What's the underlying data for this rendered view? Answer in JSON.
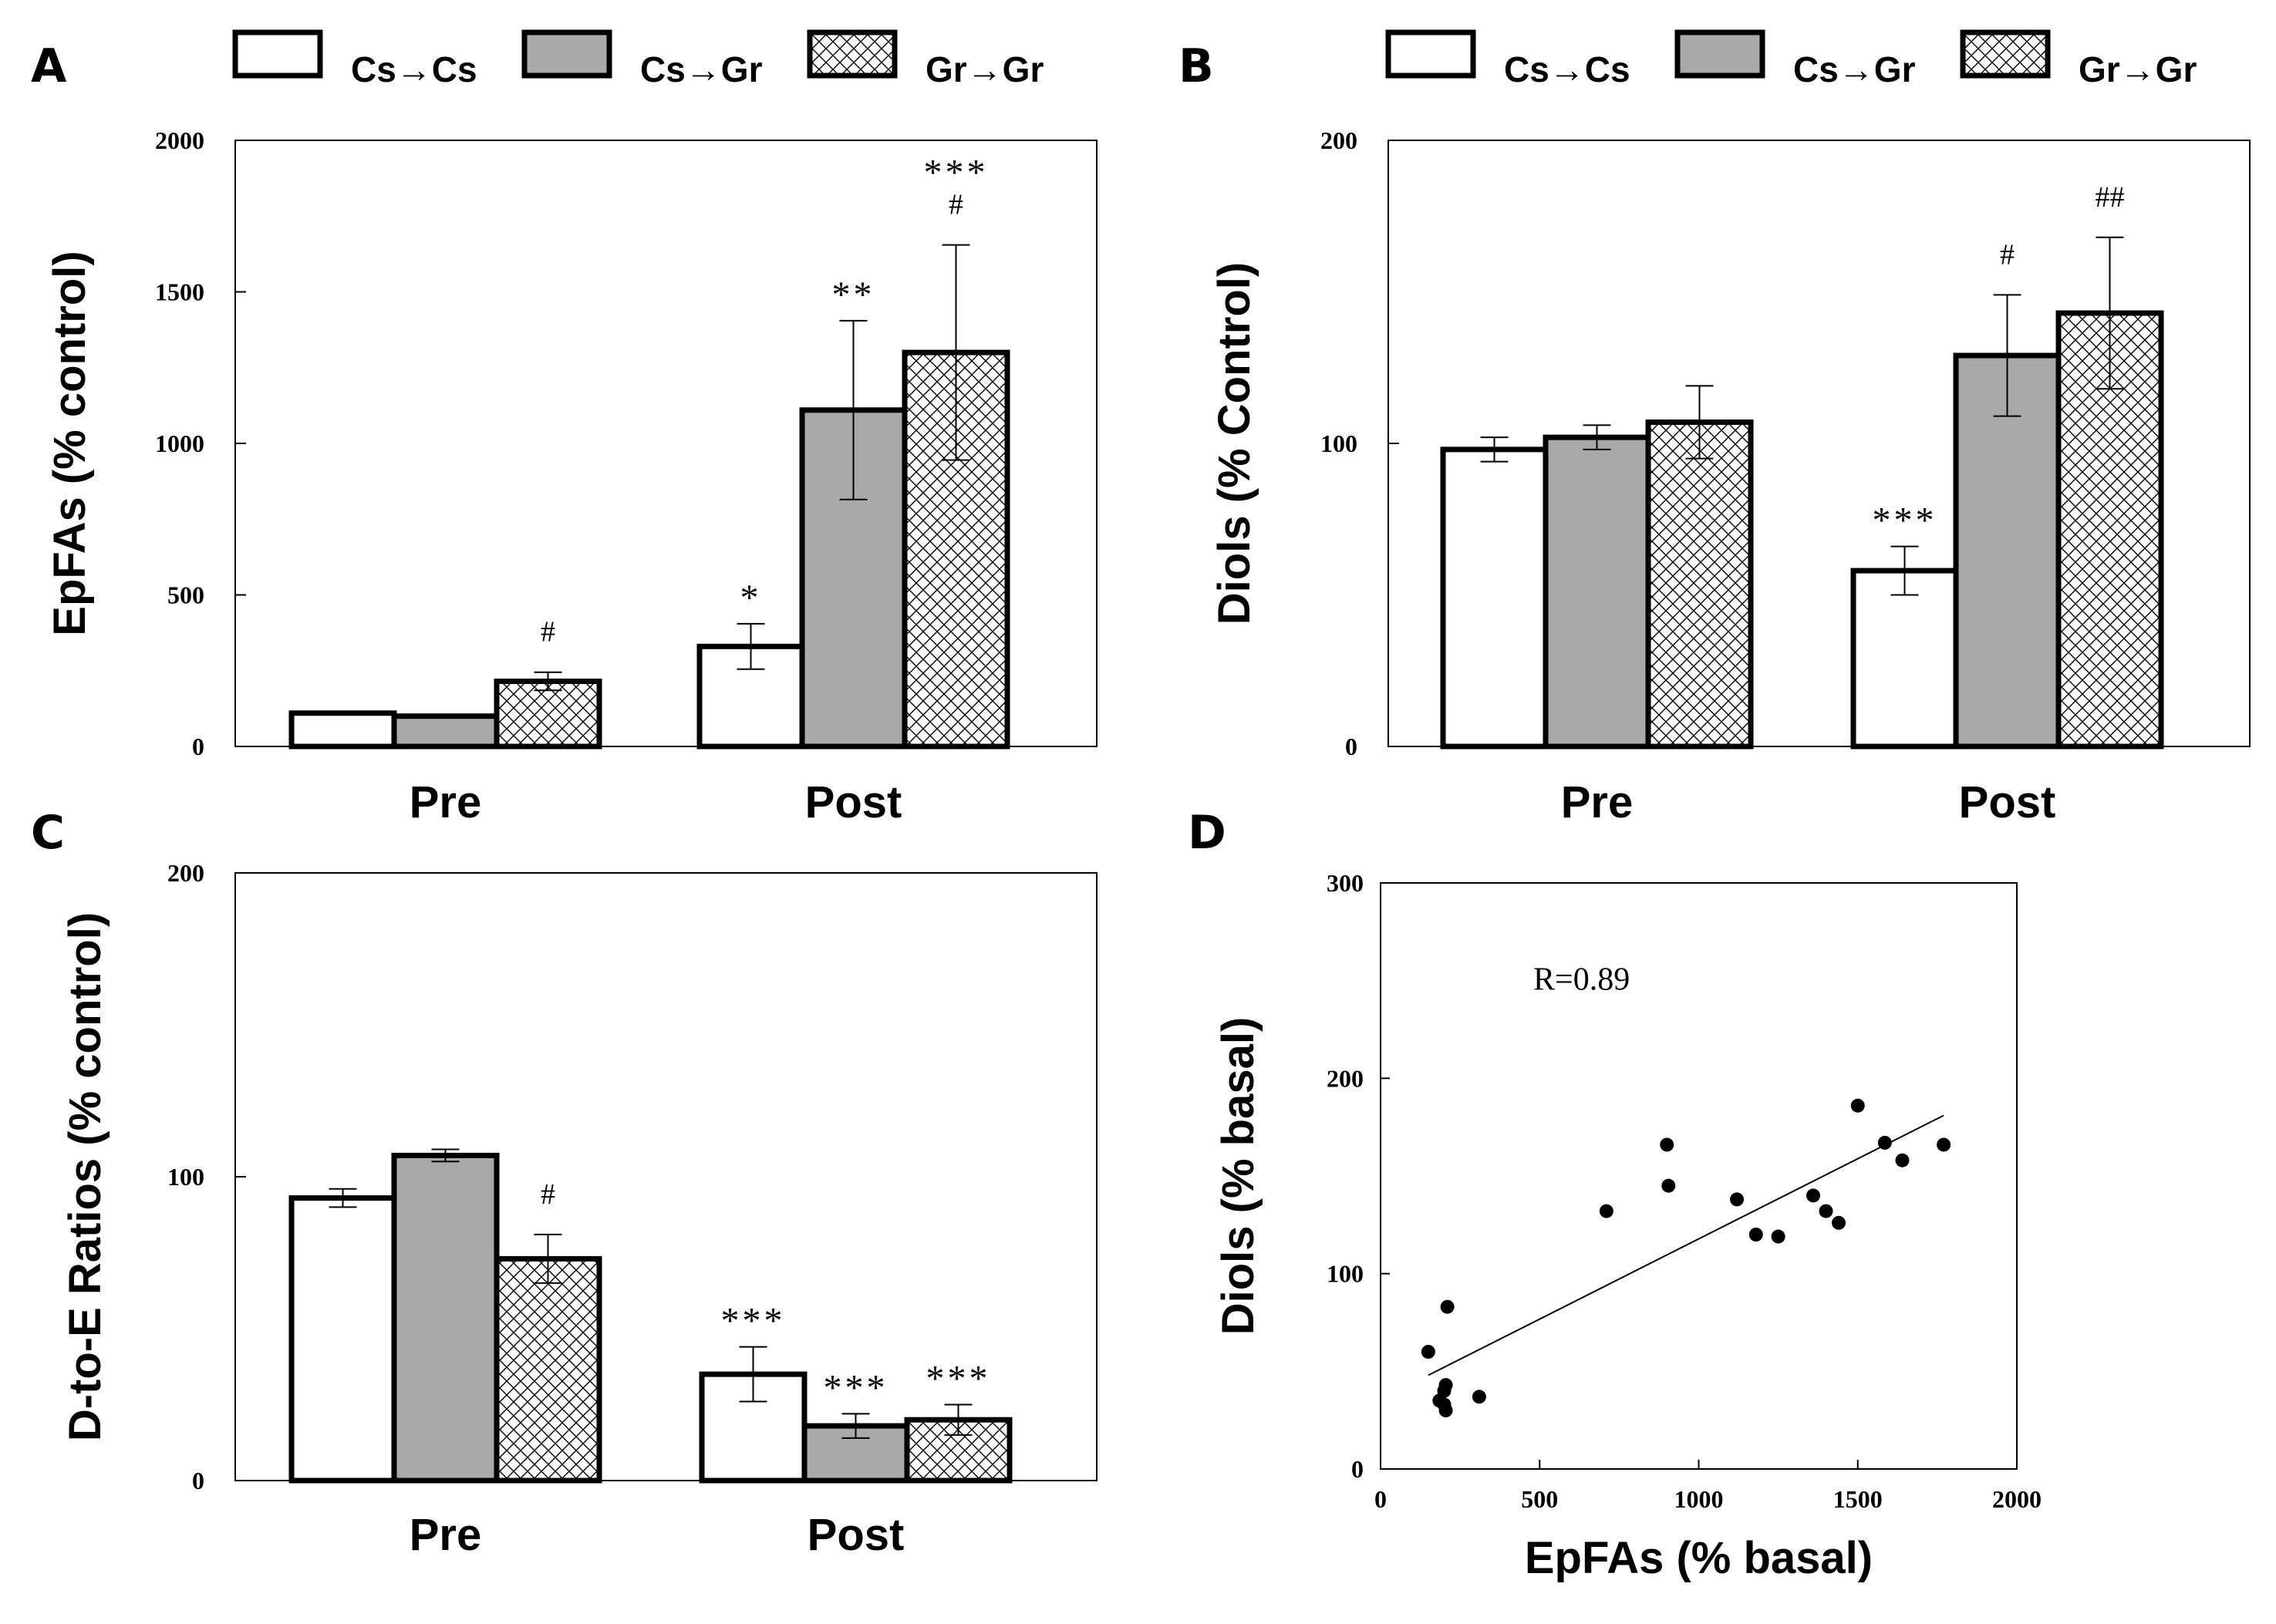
{
  "legend": {
    "items": [
      {
        "label": "Cs→Cs",
        "fill": "white"
      },
      {
        "label": "Cs→Gr",
        "fill": "#a9a9a9"
      },
      {
        "label": "Gr→Gr",
        "fill": "hatch"
      }
    ]
  },
  "colors": {
    "bar_gray": "#a9a9a9",
    "bar_white": "#ffffff",
    "line": "#000000"
  },
  "chart_data": [
    {
      "panel": "A",
      "type": "bar",
      "categories": [
        "Pre",
        "Post"
      ],
      "ylabel": "EpFAs (% control)",
      "ylim": [
        0,
        2000
      ],
      "yticks": [
        0,
        500,
        1000,
        1500,
        2000
      ],
      "series": [
        {
          "name": "Cs→Cs",
          "values": [
            110,
            330
          ],
          "errors": [
            0,
            75
          ],
          "annotations": [
            [
              "",
              ""
            ],
            [
              "*",
              ""
            ]
          ]
        },
        {
          "name": "Cs→Gr",
          "values": [
            100,
            1110
          ],
          "errors": [
            0,
            295
          ],
          "annotations": [
            [
              "",
              ""
            ],
            [
              "**",
              ""
            ]
          ]
        },
        {
          "name": "Gr→Gr",
          "values": [
            215,
            1300
          ],
          "errors": [
            30,
            355
          ],
          "annotations": [
            [
              "",
              "#"
            ],
            [
              "***",
              "#"
            ]
          ]
        }
      ]
    },
    {
      "panel": "B",
      "type": "bar",
      "categories": [
        "Pre",
        "Post"
      ],
      "ylabel": "Diols (% Control)",
      "ylim": [
        0,
        200
      ],
      "yticks": [
        0,
        100,
        200
      ],
      "series": [
        {
          "name": "Cs→Cs",
          "values": [
            98,
            58
          ],
          "errors": [
            4,
            8
          ],
          "annotations": [
            [
              "",
              ""
            ],
            [
              "***",
              ""
            ]
          ]
        },
        {
          "name": "Cs→Gr",
          "values": [
            102,
            129
          ],
          "errors": [
            4,
            20
          ],
          "annotations": [
            [
              "",
              ""
            ],
            [
              "",
              "#"
            ]
          ]
        },
        {
          "name": "Gr→Gr",
          "values": [
            107,
            143
          ],
          "errors": [
            12,
            25
          ],
          "annotations": [
            [
              "",
              ""
            ],
            [
              "",
              "##"
            ]
          ]
        }
      ]
    },
    {
      "panel": "C",
      "type": "bar",
      "categories": [
        "Pre",
        "Post"
      ],
      "ylabel": "D-to-E Ratios (% control)",
      "ylim": [
        0,
        200
      ],
      "yticks": [
        0,
        100,
        200
      ],
      "series": [
        {
          "name": "Cs→Cs",
          "values": [
            93,
            35
          ],
          "errors": [
            3,
            9
          ],
          "annotations": [
            [
              "",
              ""
            ],
            [
              "***",
              ""
            ]
          ]
        },
        {
          "name": "Cs→Gr",
          "values": [
            107,
            18
          ],
          "errors": [
            2,
            4
          ],
          "annotations": [
            [
              "",
              ""
            ],
            [
              "***",
              ""
            ]
          ]
        },
        {
          "name": "Gr→Gr",
          "values": [
            73,
            20
          ],
          "errors": [
            8,
            5
          ],
          "annotations": [
            [
              "",
              "#"
            ],
            [
              "***",
              ""
            ]
          ]
        }
      ]
    },
    {
      "panel": "D",
      "type": "scatter",
      "xlabel": "EpFAs (% basal)",
      "ylabel": "Diols (% basal)",
      "xlim": [
        0,
        2000
      ],
      "ylim": [
        0,
        300
      ],
      "xticks": [
        0,
        500,
        1000,
        1500,
        2000
      ],
      "yticks": [
        0,
        100,
        200,
        300
      ],
      "annotation": "R=0.89",
      "points": [
        [
          150,
          60
        ],
        [
          185,
          35
        ],
        [
          200,
          33
        ],
        [
          205,
          30
        ],
        [
          200,
          40
        ],
        [
          205,
          43
        ],
        [
          210,
          83
        ],
        [
          310,
          37
        ],
        [
          710,
          132
        ],
        [
          900,
          166
        ],
        [
          905,
          145
        ],
        [
          1120,
          138
        ],
        [
          1180,
          120
        ],
        [
          1250,
          119
        ],
        [
          1360,
          140
        ],
        [
          1400,
          132
        ],
        [
          1440,
          126
        ],
        [
          1500,
          186
        ],
        [
          1585,
          167
        ],
        [
          1640,
          158
        ],
        [
          1770,
          166
        ]
      ],
      "fit": {
        "x": [
          150,
          1770
        ],
        "y": [
          48,
          181
        ]
      }
    }
  ]
}
